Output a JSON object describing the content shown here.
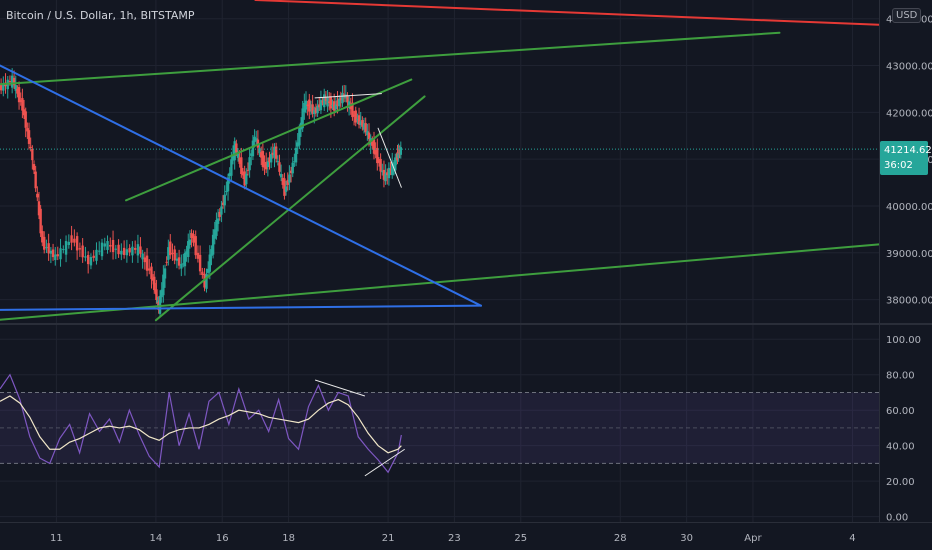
{
  "header": {
    "symbol_title": "Bitcoin / U.S. Dollar, 1h, BITSTAMP",
    "currency": "USD"
  },
  "last_price": {
    "price": "41214.62",
    "countdown": "36:02"
  },
  "colors": {
    "background": "#131722",
    "grid": "#1f2330",
    "up_candle": "#26a69a",
    "down_candle": "#ef5350",
    "rsi_line": "#7e57c2",
    "rsi_ma": "#f0e6c8",
    "rsi_band": "#7e57c2",
    "trend_green": "#3e9e3e",
    "trend_blue": "#2f6fe6",
    "trend_red": "#e53935",
    "annotation": "#e8e8e8",
    "last_price_line": "#26a69a"
  },
  "chart_data": [
    {
      "type": "candlestick",
      "title": "Bitcoin / U.S. Dollar, 1h, BITSTAMP",
      "x_ticks": [
        {
          "label": "11",
          "day": 11
        },
        {
          "label": "14",
          "day": 14
        },
        {
          "label": "16",
          "day": 16
        },
        {
          "label": "18",
          "day": 18
        },
        {
          "label": "21",
          "day": 21
        },
        {
          "label": "23",
          "day": 23
        },
        {
          "label": "25",
          "day": 25
        },
        {
          "label": "28",
          "day": 28
        },
        {
          "label": "30",
          "day": 30
        },
        {
          "label": "Apr",
          "day": 32
        },
        {
          "label": "4",
          "day": 35
        }
      ],
      "xlim_days": [
        9.3,
        35.8
      ],
      "ylim": [
        37500,
        44400
      ],
      "y_ticks": [
        "38000.00",
        "39000.00",
        "40000.00",
        "41000.00",
        "42000.00",
        "43000.00",
        "44000.00"
      ],
      "y_tick_values": [
        38000,
        39000,
        40000,
        41000,
        42000,
        43000,
        44000
      ],
      "last_price": 41214.62,
      "price_path_days": [
        9.3,
        9.7,
        10.0,
        10.3,
        10.6,
        11.0,
        11.5,
        12.0,
        12.5,
        13.0,
        13.5,
        13.9,
        14.1,
        14.4,
        14.8,
        15.1,
        15.5,
        15.8,
        16.1,
        16.4,
        16.7,
        17.0,
        17.3,
        17.6,
        17.9,
        18.2,
        18.5,
        18.8,
        19.1,
        19.4,
        19.7,
        20.0,
        20.3,
        20.6,
        20.9,
        21.2,
        21.4
      ],
      "price_path": [
        42500,
        42700,
        42100,
        41000,
        39200,
        38900,
        39300,
        38800,
        39200,
        39000,
        39100,
        38500,
        37800,
        39100,
        38700,
        39400,
        38300,
        39500,
        40200,
        41300,
        40500,
        41500,
        40800,
        41200,
        40300,
        41000,
        42200,
        42000,
        42300,
        42100,
        42400,
        41900,
        41700,
        41200,
        40600,
        40900,
        41214.62
      ],
      "trendlines": [
        {
          "color": "green",
          "from": [
            9.3,
            42600
          ],
          "to": [
            32.8,
            43700
          ]
        },
        {
          "color": "green",
          "from": [
            9.3,
            37570
          ],
          "to": [
            35.8,
            39180
          ]
        },
        {
          "color": "green",
          "from": [
            13.1,
            40120
          ],
          "to": [
            21.7,
            42700
          ]
        },
        {
          "color": "green",
          "from": [
            14.0,
            37560
          ],
          "to": [
            22.1,
            42340
          ]
        },
        {
          "color": "blue",
          "from": [
            9.3,
            43000
          ],
          "to": [
            23.8,
            37870
          ]
        },
        {
          "color": "blue",
          "from": [
            9.3,
            37780
          ],
          "to": [
            23.8,
            37870
          ]
        },
        {
          "color": "red",
          "from": [
            17.0,
            44400
          ],
          "to": [
            35.8,
            43870
          ]
        },
        {
          "color": "annotation",
          "from": [
            18.8,
            42310
          ],
          "to": [
            20.8,
            42400
          ]
        },
        {
          "color": "annotation",
          "from": [
            20.7,
            41660
          ],
          "to": [
            21.4,
            40400
          ]
        }
      ]
    },
    {
      "type": "line",
      "title": "",
      "ylim": [
        -3,
        108
      ],
      "y_ticks": [
        "0.00",
        "20.00",
        "40.00",
        "60.00",
        "80.00",
        "100.00"
      ],
      "y_tick_values": [
        0,
        20,
        40,
        60,
        80,
        100
      ],
      "band": [
        30,
        70
      ],
      "midline": 50,
      "rsi_days": [
        9.3,
        9.6,
        9.9,
        10.2,
        10.5,
        10.8,
        11.1,
        11.4,
        11.7,
        12.0,
        12.3,
        12.6,
        12.9,
        13.2,
        13.5,
        13.8,
        14.1,
        14.4,
        14.7,
        15.0,
        15.3,
        15.6,
        15.9,
        16.2,
        16.5,
        16.8,
        17.1,
        17.4,
        17.7,
        18.0,
        18.3,
        18.6,
        18.9,
        19.2,
        19.5,
        19.8,
        20.1,
        20.4,
        20.7,
        21.0,
        21.3,
        21.4
      ],
      "rsi": [
        72,
        80,
        66,
        45,
        33,
        30,
        44,
        52,
        36,
        58,
        48,
        55,
        42,
        60,
        46,
        34,
        28,
        70,
        40,
        58,
        38,
        65,
        70,
        52,
        72,
        55,
        60,
        48,
        66,
        44,
        38,
        62,
        74,
        60,
        70,
        68,
        45,
        38,
        32,
        25,
        36,
        46
      ],
      "rsi_ma": [
        65,
        68,
        64,
        56,
        45,
        38,
        38,
        42,
        44,
        47,
        50,
        51,
        50,
        51,
        49,
        45,
        43,
        47,
        49,
        50,
        50,
        52,
        55,
        57,
        60,
        59,
        58,
        56,
        55,
        54,
        53,
        55,
        60,
        64,
        66,
        63,
        56,
        47,
        40,
        36,
        38,
        40
      ],
      "annotations": [
        {
          "from": [
            18.8,
            77
          ],
          "to": [
            20.3,
            68
          ]
        },
        {
          "from": [
            21.5,
            38
          ],
          "to": [
            20.3,
            23
          ]
        }
      ]
    }
  ]
}
